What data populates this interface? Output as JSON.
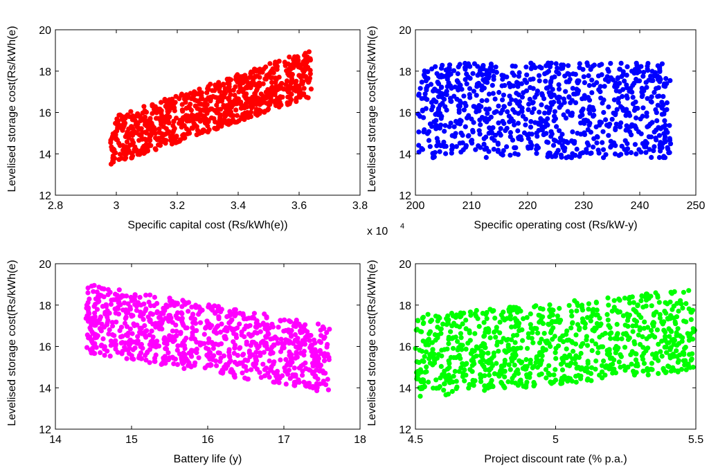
{
  "chart_data": [
    {
      "type": "scatter",
      "xlabel": "Specific capital cost (Rs/kWh(e))",
      "ylabel": "Levelised storage cost(Rs/kWh(e)",
      "x_multiplier": {
        "base": "x 10",
        "exponent": "4"
      },
      "xlim": [
        2.8,
        3.8
      ],
      "ylim": [
        12,
        20
      ],
      "xticks": [
        "2.8",
        "3",
        "3.2",
        "3.4",
        "3.6",
        "3.8"
      ],
      "yticks": [
        "12",
        "14",
        "16",
        "18",
        "20"
      ],
      "color": "#ff0000",
      "grid": false,
      "x_range": [
        2.98,
        3.64
      ],
      "y_trend": {
        "slope": 5.0,
        "intercept": -0.3,
        "spread": 1.15
      },
      "points": 900
    },
    {
      "type": "scatter",
      "xlabel": "Specific operating cost (Rs/kW-y)",
      "ylabel": "Levelised storage cost(Rs/kWh(e)",
      "xlim": [
        200,
        250
      ],
      "ylim": [
        12,
        20
      ],
      "xticks": [
        "200",
        "210",
        "220",
        "230",
        "240",
        "250"
      ],
      "yticks": [
        "12",
        "14",
        "16",
        "18",
        "20"
      ],
      "color": "#0000ff",
      "grid": false,
      "x_range": [
        200.5,
        245.5
      ],
      "y_trend": {
        "slope": 0.0,
        "intercept": 16.1,
        "spread": 2.3
      },
      "points": 900
    },
    {
      "type": "scatter",
      "xlabel": "Battery life (y)",
      "ylabel": "Levelised storage cost(Rs/kWh(e)",
      "xlim": [
        14,
        18
      ],
      "ylim": [
        12,
        20
      ],
      "xticks": [
        "14",
        "15",
        "16",
        "17",
        "18"
      ],
      "yticks": [
        "12",
        "14",
        "16",
        "18",
        "20"
      ],
      "color": "#ff00ff",
      "grid": false,
      "x_range": [
        14.4,
        17.6
      ],
      "y_trend": {
        "slope": -0.62,
        "intercept": 26.3,
        "spread": 1.65
      },
      "points": 900
    },
    {
      "type": "scatter",
      "xlabel": "Project discount rate (% p.a.)",
      "ylabel": "Levelised storage cost(Rs/kWh(e)",
      "xlim": [
        4.5,
        5.5
      ],
      "ylim": [
        12,
        20
      ],
      "xticks": [
        "4.5",
        "5",
        "5.5"
      ],
      "yticks": [
        "12",
        "14",
        "16",
        "18",
        "20"
      ],
      "color": "#00ff00",
      "grid": false,
      "x_range": [
        4.5,
        5.5
      ],
      "y_trend": {
        "slope": 1.3,
        "intercept": 9.65,
        "spread": 2.0
      },
      "points": 900
    }
  ]
}
